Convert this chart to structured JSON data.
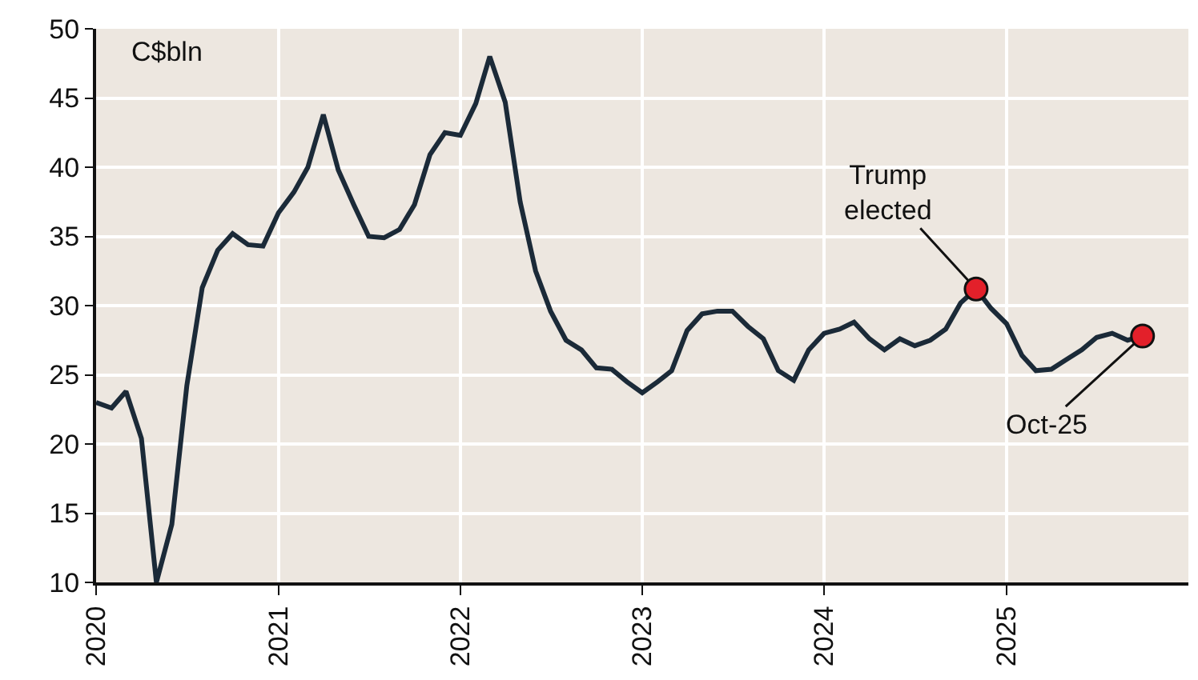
{
  "chart_data": {
    "type": "line",
    "ylabel": "C$bln",
    "x": [
      "2020-01",
      "2020-02",
      "2020-03",
      "2020-04",
      "2020-05",
      "2020-06",
      "2020-07",
      "2020-08",
      "2020-09",
      "2020-10",
      "2020-11",
      "2020-12",
      "2021-01",
      "2021-02",
      "2021-03",
      "2021-04",
      "2021-05",
      "2021-06",
      "2021-07",
      "2021-08",
      "2021-09",
      "2021-10",
      "2021-11",
      "2021-12",
      "2022-01",
      "2022-02",
      "2022-03",
      "2022-04",
      "2022-05",
      "2022-06",
      "2022-07",
      "2022-08",
      "2022-09",
      "2022-10",
      "2022-11",
      "2022-12",
      "2023-01",
      "2023-02",
      "2023-03",
      "2023-04",
      "2023-05",
      "2023-06",
      "2023-07",
      "2023-08",
      "2023-09",
      "2023-10",
      "2023-11",
      "2023-12",
      "2024-01",
      "2024-02",
      "2024-03",
      "2024-04",
      "2024-05",
      "2024-06",
      "2024-07",
      "2024-08",
      "2024-09",
      "2024-10",
      "2024-11",
      "2024-12",
      "2025-01",
      "2025-02",
      "2025-03",
      "2025-04",
      "2025-05",
      "2025-06",
      "2025-07",
      "2025-08",
      "2025-09",
      "2025-10"
    ],
    "series": [
      {
        "color": "#1b2a38",
        "values": [
          23.0,
          22.6,
          23.8,
          20.4,
          10,
          14.2,
          24.2,
          31.3,
          34.0,
          35.2,
          34.4,
          34.3,
          36.7,
          38.2,
          40.0,
          43.8,
          39.8,
          37.3,
          35.0,
          34.9,
          35.5,
          37.3,
          40.9,
          42.5,
          42.3,
          44.6,
          48.0,
          44.7,
          37.5,
          32.5,
          29.6,
          27.5,
          26.8,
          25.5,
          25.4,
          24.5,
          23.7,
          24.5,
          25.3,
          28.2,
          29.4,
          29.6,
          29.6,
          28.5,
          27.6,
          25.3,
          24.6,
          26.8,
          28.0,
          28.3,
          28.8,
          27.6,
          26.8,
          27.6,
          27.1,
          27.5,
          28.3,
          30.2,
          31.2,
          29.8,
          28.7,
          26.4,
          25.3,
          25.4,
          26.1,
          26.8,
          27.7,
          28.0,
          27.5,
          27.8
        ]
      },
      {
        "type": "scatter",
        "color": "#e3202a",
        "marker": "circle",
        "x": [
          "2024-11",
          "2025-10"
        ],
        "values": [
          31.2,
          27.8
        ]
      }
    ],
    "xlim": [
      "2020-01",
      "2026-01"
    ],
    "xticks": [
      {
        "value": "2020-01",
        "label": "2020"
      },
      {
        "value": "2021-01",
        "label": "2021"
      },
      {
        "value": "2022-01",
        "label": "2022"
      },
      {
        "value": "2023-01",
        "label": "2023"
      },
      {
        "value": "2024-01",
        "label": "2024"
      },
      {
        "value": "2025-01",
        "label": "2025"
      }
    ],
    "ylim": [
      10,
      50
    ],
    "yticks": [
      10,
      15,
      20,
      25,
      30,
      35,
      40,
      45,
      50
    ],
    "grid": true,
    "marker": "none",
    "line_style": "solid",
    "annotations": [
      {
        "text": "Trump\nelected",
        "x": "2024-11",
        "y": 31.2
      },
      {
        "text": "Oct-25",
        "x": "2025-10",
        "y": 27.8
      }
    ]
  }
}
